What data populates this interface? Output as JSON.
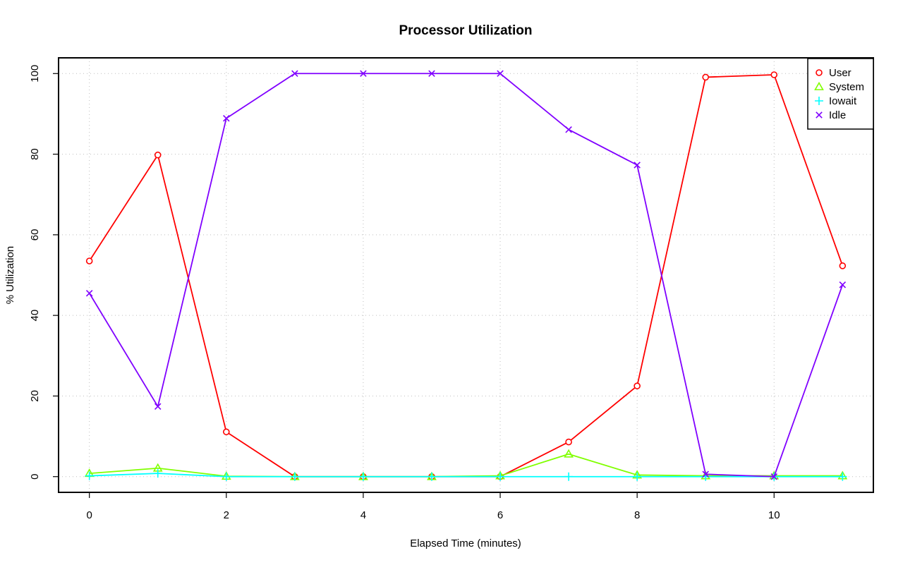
{
  "chart_data": {
    "type": "line",
    "title": "Processor Utilization",
    "xlabel": "Elapsed Time (minutes)",
    "ylabel": "% Utilization",
    "x": [
      0,
      1,
      2,
      3,
      4,
      5,
      6,
      7,
      8,
      9,
      10,
      11
    ],
    "xlim": [
      -0.45,
      11.45
    ],
    "ylim": [
      -3.9,
      103.9
    ],
    "xticks": [
      0,
      2,
      4,
      6,
      8,
      10
    ],
    "yticks": [
      0,
      20,
      40,
      60,
      80,
      100
    ],
    "xtick_labels": [
      "0",
      "2",
      "4",
      "6",
      "8",
      "10"
    ],
    "ytick_labels": [
      "0",
      "20",
      "40",
      "60",
      "80",
      "100"
    ],
    "grid": true,
    "legend_position": "top-right",
    "series": [
      {
        "name": "User",
        "color": "#ff0000",
        "marker": "circle",
        "values": [
          53.5,
          79.8,
          11.1,
          0,
          0,
          0,
          0,
          8.6,
          22.5,
          99.1,
          99.7,
          52.3
        ]
      },
      {
        "name": "System",
        "color": "#80ff00",
        "marker": "triangle",
        "values": [
          0.8,
          2.1,
          0.1,
          0,
          0,
          0,
          0.2,
          5.6,
          0.4,
          0.2,
          0.2,
          0.2
        ]
      },
      {
        "name": "Iowait",
        "color": "#00ffff",
        "marker": "plus",
        "values": [
          0.2,
          0.8,
          0,
          0,
          0,
          0,
          0,
          0,
          0,
          0,
          0,
          0
        ]
      },
      {
        "name": "Idle",
        "color": "#8000ff",
        "marker": "cross",
        "values": [
          45.5,
          17.4,
          88.9,
          100,
          100,
          100,
          100,
          86.1,
          77.3,
          0.6,
          0,
          47.6
        ]
      }
    ]
  }
}
